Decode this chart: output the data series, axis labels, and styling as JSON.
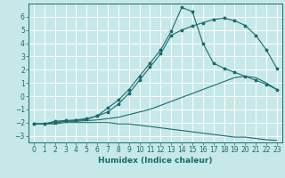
{
  "xlabel": "Humidex (Indice chaleur)",
  "background_color": "#c6e8e8",
  "grid_color": "#ffffff",
  "line_color": "#1a6b6b",
  "xlim": [
    -0.5,
    23.5
  ],
  "ylim": [
    -3.5,
    7.0
  ],
  "x_ticks": [
    0,
    1,
    2,
    3,
    4,
    5,
    6,
    7,
    8,
    9,
    10,
    11,
    12,
    13,
    14,
    15,
    16,
    17,
    18,
    19,
    20,
    21,
    22,
    23
  ],
  "y_ticks": [
    -3,
    -2,
    -1,
    0,
    1,
    2,
    3,
    4,
    5,
    6
  ],
  "line1_x": [
    0,
    1,
    2,
    3,
    4,
    5,
    6,
    7,
    8,
    9,
    10,
    11,
    12,
    13,
    14,
    15,
    16,
    17,
    18,
    19,
    20,
    21,
    22,
    23
  ],
  "line1_y": [
    -2.1,
    -2.1,
    -2.1,
    -2.0,
    -2.0,
    -2.0,
    -2.0,
    -2.0,
    -2.1,
    -2.1,
    -2.2,
    -2.3,
    -2.4,
    -2.5,
    -2.6,
    -2.7,
    -2.8,
    -2.9,
    -3.0,
    -3.1,
    -3.1,
    -3.2,
    -3.3,
    -3.35
  ],
  "line2_x": [
    0,
    1,
    2,
    3,
    4,
    5,
    6,
    7,
    8,
    9,
    10,
    11,
    12,
    13,
    14,
    15,
    16,
    17,
    18,
    19,
    20,
    21,
    22,
    23
  ],
  "line2_y": [
    -2.1,
    -2.1,
    -2.0,
    -1.9,
    -1.9,
    -1.85,
    -1.8,
    -1.7,
    -1.6,
    -1.4,
    -1.2,
    -1.0,
    -0.7,
    -0.4,
    -0.1,
    0.2,
    0.5,
    0.8,
    1.1,
    1.4,
    1.5,
    1.4,
    1.0,
    0.5
  ],
  "line3_x": [
    0,
    1,
    2,
    3,
    4,
    5,
    6,
    7,
    8,
    9,
    10,
    11,
    12,
    13,
    14,
    15,
    16,
    17,
    18,
    19,
    20,
    21,
    22,
    23
  ],
  "line3_y": [
    -2.1,
    -2.1,
    -2.0,
    -1.9,
    -1.85,
    -1.75,
    -1.5,
    -1.2,
    -0.6,
    0.2,
    1.2,
    2.2,
    3.2,
    4.6,
    5.0,
    5.3,
    5.55,
    5.8,
    5.9,
    5.7,
    5.35,
    4.6,
    3.5,
    2.1
  ],
  "line4_x": [
    0,
    1,
    2,
    3,
    4,
    5,
    6,
    7,
    8,
    9,
    10,
    11,
    12,
    13,
    14,
    15,
    16,
    17,
    18,
    19,
    20,
    21,
    22,
    23
  ],
  "line4_y": [
    -2.1,
    -2.1,
    -1.9,
    -1.85,
    -1.8,
    -1.7,
    -1.5,
    -0.9,
    -0.3,
    0.5,
    1.5,
    2.5,
    3.5,
    4.9,
    6.7,
    6.4,
    4.0,
    2.5,
    2.1,
    1.8,
    1.5,
    1.2,
    0.9,
    0.5
  ],
  "line1_marker": false,
  "line2_marker": false,
  "line3_marker": true,
  "line4_marker": true
}
